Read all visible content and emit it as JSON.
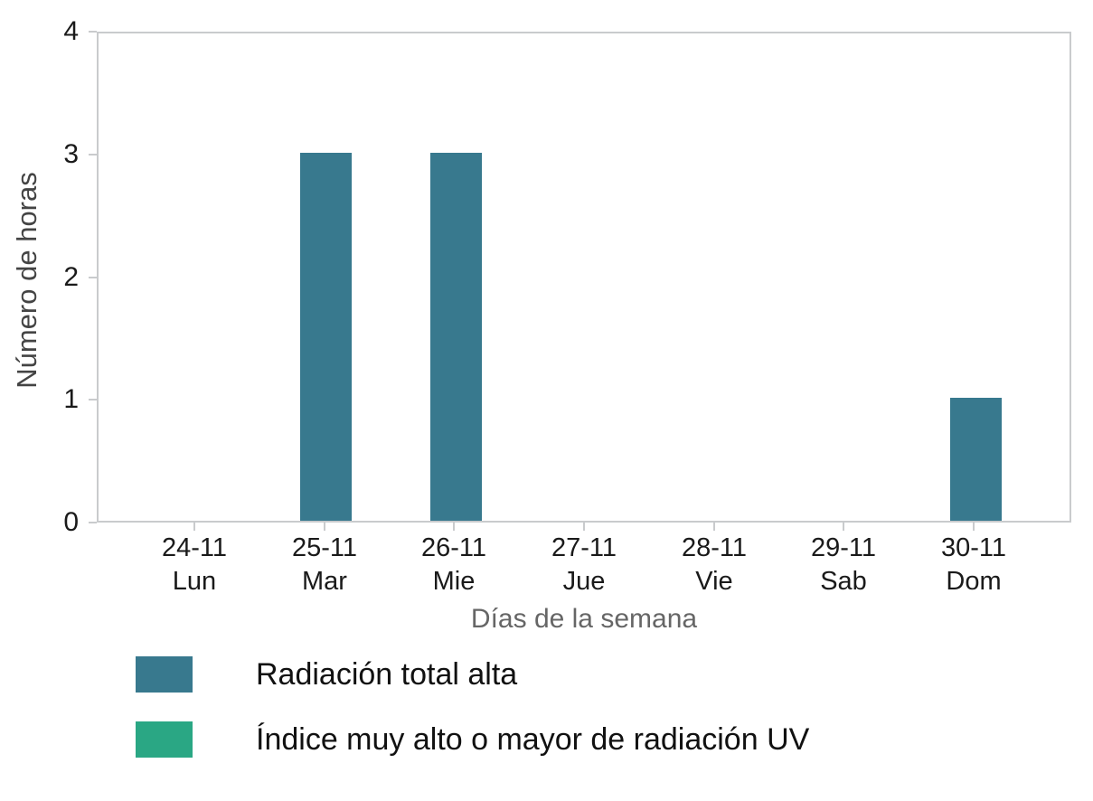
{
  "figure": {
    "ylabel": "Número de horas",
    "xlabel": "Días de la semana"
  },
  "chart_data": {
    "type": "bar",
    "title": "",
    "categories": [
      "24-11",
      "25-11",
      "26-11",
      "27-11",
      "28-11",
      "29-11",
      "30-11"
    ],
    "day_labels": [
      "Lun",
      "Mar",
      "Mie",
      "Jue",
      "Vie",
      "Sab",
      "Dom"
    ],
    "series": [
      {
        "name": "Radiación total alta",
        "color": "#38798e",
        "values": [
          0,
          3,
          3,
          0,
          0,
          0,
          1
        ]
      },
      {
        "name": "Índice muy alto o mayor de radiación UV",
        "color": "#2aa784",
        "values": [
          0,
          0,
          0,
          0,
          0,
          0,
          0
        ]
      }
    ],
    "xlabel": "Días de la semana",
    "ylabel": "Número de horas",
    "ylim": [
      0,
      4
    ],
    "yticks": [
      0,
      1,
      2,
      3,
      4
    ],
    "grid": false,
    "legend_position": "below-left"
  },
  "legend": {
    "items": [
      {
        "label": "Radiación total alta",
        "color": "#38798e"
      },
      {
        "label": "Índice muy alto o mayor de radiación UV",
        "color": "#2aa784"
      }
    ]
  }
}
